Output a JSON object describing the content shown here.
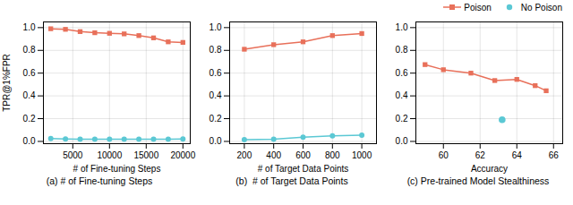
{
  "chart_data": [
    {
      "type": "line",
      "xlabel": "# of Fine-tuning Steps",
      "ylabel": "TPR@1%FPR",
      "caption": "(a) # of Fine-tuning Steps",
      "series": [
        {
          "name": "Poison",
          "color": "#E8705A",
          "marker": "square",
          "x": [
            2000,
            4000,
            6000,
            8000,
            10000,
            12000,
            14000,
            16000,
            18000,
            20000
          ],
          "values": [
            0.99,
            0.985,
            0.965,
            0.955,
            0.95,
            0.945,
            0.93,
            0.91,
            0.875,
            0.87
          ]
        },
        {
          "name": "No Poison",
          "color": "#5BC8D4",
          "marker": "circle",
          "x": [
            2000,
            4000,
            6000,
            8000,
            10000,
            12000,
            14000,
            16000,
            18000,
            20000
          ],
          "values": [
            0.025,
            0.022,
            0.02,
            0.02,
            0.02,
            0.02,
            0.02,
            0.02,
            0.02,
            0.022
          ]
        }
      ],
      "xlim": [
        1000,
        21000
      ],
      "xticks": [
        5000,
        10000,
        15000,
        20000
      ],
      "ylim": [
        -0.02,
        1.05
      ],
      "yticks": [
        {
          "value": 0,
          "label": "0.0"
        },
        0.2,
        0.4,
        0.6,
        0.8,
        {
          "value": 1,
          "label": "1.0"
        }
      ],
      "grid": true
    },
    {
      "type": "line",
      "xlabel": "# of Target Data Points",
      "caption": "(b)  # of Target Data Points",
      "series": [
        {
          "name": "Poison",
          "color": "#E8705A",
          "marker": "square",
          "x": [
            200,
            400,
            600,
            800,
            1000
          ],
          "values": [
            0.81,
            0.85,
            0.875,
            0.93,
            0.948
          ]
        },
        {
          "name": "No Poison",
          "color": "#5BC8D4",
          "marker": "circle",
          "x": [
            200,
            400,
            600,
            800,
            1000
          ],
          "values": [
            0.015,
            0.02,
            0.038,
            0.048,
            0.055
          ]
        }
      ],
      "xlim": [
        100,
        1100
      ],
      "xticks": [
        200,
        400,
        600,
        800,
        1000
      ],
      "ylim": [
        -0.02,
        1.05
      ],
      "yticks": [
        {
          "value": 0,
          "label": "0.0"
        },
        0.2,
        0.4,
        0.6,
        0.8,
        {
          "value": 1,
          "label": "1.0"
        }
      ],
      "grid": true
    },
    {
      "type": "line",
      "xlabel": "Accuracy",
      "caption": "(c) Pre-trained Model Stealthiness",
      "series": [
        {
          "name": "Poison",
          "color": "#E8705A",
          "marker": "square",
          "x": [
            59.0,
            60.0,
            61.5,
            62.8,
            64.0,
            65.0,
            65.6
          ],
          "values": [
            0.675,
            0.63,
            0.6,
            0.535,
            0.545,
            0.49,
            0.445
          ]
        },
        {
          "name": "No Poison",
          "color": "#5BC8D4",
          "marker": "circle",
          "type": "scatter",
          "x": [
            63.2
          ],
          "values": [
            0.19
          ]
        }
      ],
      "xlim": [
        58.5,
        66.5
      ],
      "xticks": [
        60,
        62,
        64,
        66
      ],
      "ylim": [
        -0.02,
        1.05
      ],
      "yticks": [
        {
          "value": 0,
          "label": "0.0"
        },
        0.2,
        0.4,
        0.6,
        0.8,
        {
          "value": 1,
          "label": "1.0"
        }
      ],
      "grid": true,
      "legend": "upper right"
    }
  ]
}
